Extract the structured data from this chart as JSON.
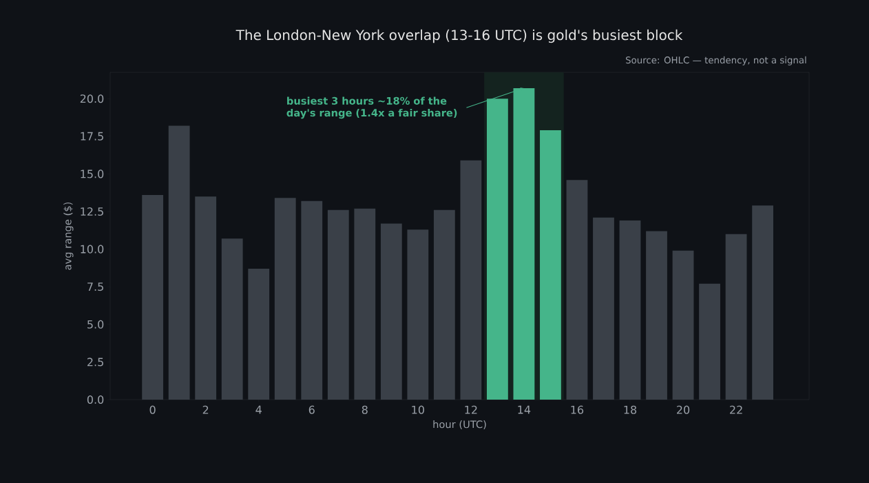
{
  "chart_data": {
    "type": "bar",
    "title": "The London-New York overlap (13-16 UTC) is gold's busiest block",
    "xlabel": "hour (UTC)",
    "ylabel": "avg range ($)",
    "x": [
      0,
      1,
      2,
      3,
      4,
      5,
      6,
      7,
      8,
      9,
      10,
      11,
      12,
      13,
      14,
      15,
      16,
      17,
      18,
      19,
      20,
      21,
      22,
      23
    ],
    "values": [
      13.6,
      18.2,
      13.5,
      10.7,
      8.7,
      13.4,
      13.2,
      12.6,
      12.7,
      11.7,
      11.3,
      12.6,
      15.9,
      20.0,
      20.7,
      17.9,
      14.6,
      12.1,
      11.9,
      11.2,
      9.9,
      7.7,
      11.0,
      12.9
    ],
    "colors": [
      "#3a4048",
      "#3a4048",
      "#3a4048",
      "#3a4048",
      "#3a4048",
      "#3a4048",
      "#3a4048",
      "#3a4048",
      "#3a4048",
      "#3a4048",
      "#3a4048",
      "#3a4048",
      "#3a4048",
      "#45b58a",
      "#45b58a",
      "#45b58a",
      "#3a4048",
      "#3a4048",
      "#3a4048",
      "#3a4048",
      "#3a4048",
      "#3a4048",
      "#3a4048",
      "#3a4048"
    ],
    "xlim": [
      -1.6,
      24.75
    ],
    "ylim": [
      0,
      21.75
    ],
    "xticks": [
      0,
      2,
      4,
      6,
      8,
      10,
      12,
      14,
      16,
      18,
      20,
      22
    ],
    "yticks": [
      {
        "value": 0,
        "label": "0.0"
      },
      {
        "value": 2.5,
        "label": "2.5"
      },
      {
        "value": 5,
        "label": "5.0"
      },
      {
        "value": 7.5,
        "label": "7.5"
      },
      {
        "value": 10,
        "label": "10.0"
      },
      {
        "value": 12.5,
        "label": "12.5"
      },
      {
        "value": 15,
        "label": "15.0"
      },
      {
        "value": 17.5,
        "label": "17.5"
      },
      {
        "value": 20,
        "label": "20.0"
      }
    ],
    "bands": [
      {
        "axis": "x",
        "from": 12.5,
        "to": 15.5,
        "color": "#14231f"
      }
    ],
    "annotations": [
      {
        "text": "busiest 3 hours ~18% of the day's range (1.4x a fair share)",
        "x": 14,
        "y": 20.7
      },
      "Source: OHLC — tendency, not a signal"
    ]
  }
}
